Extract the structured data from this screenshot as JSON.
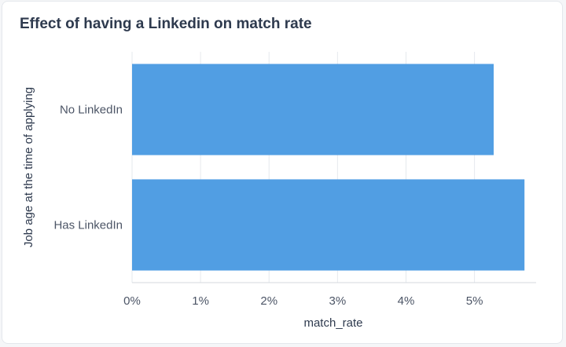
{
  "card": {
    "title": "Effect of having a Linkedin on match rate"
  },
  "chart_data": {
    "type": "bar",
    "orientation": "horizontal",
    "categories": [
      "No LinkedIn",
      "Has LinkedIn"
    ],
    "values": [
      5.28,
      5.73
    ],
    "value_unit": "%",
    "xlabel": "match_rate",
    "ylabel": "Job age at the time of applying",
    "xlim": [
      0,
      5.9
    ],
    "x_ticks": [
      0,
      1,
      2,
      3,
      4,
      5
    ],
    "x_tick_labels": [
      "0%",
      "1%",
      "2%",
      "3%",
      "4%",
      "5%"
    ],
    "grid": true,
    "legend": false,
    "bar_color": "#519ee3",
    "grid_color": "#e6e9ee"
  }
}
